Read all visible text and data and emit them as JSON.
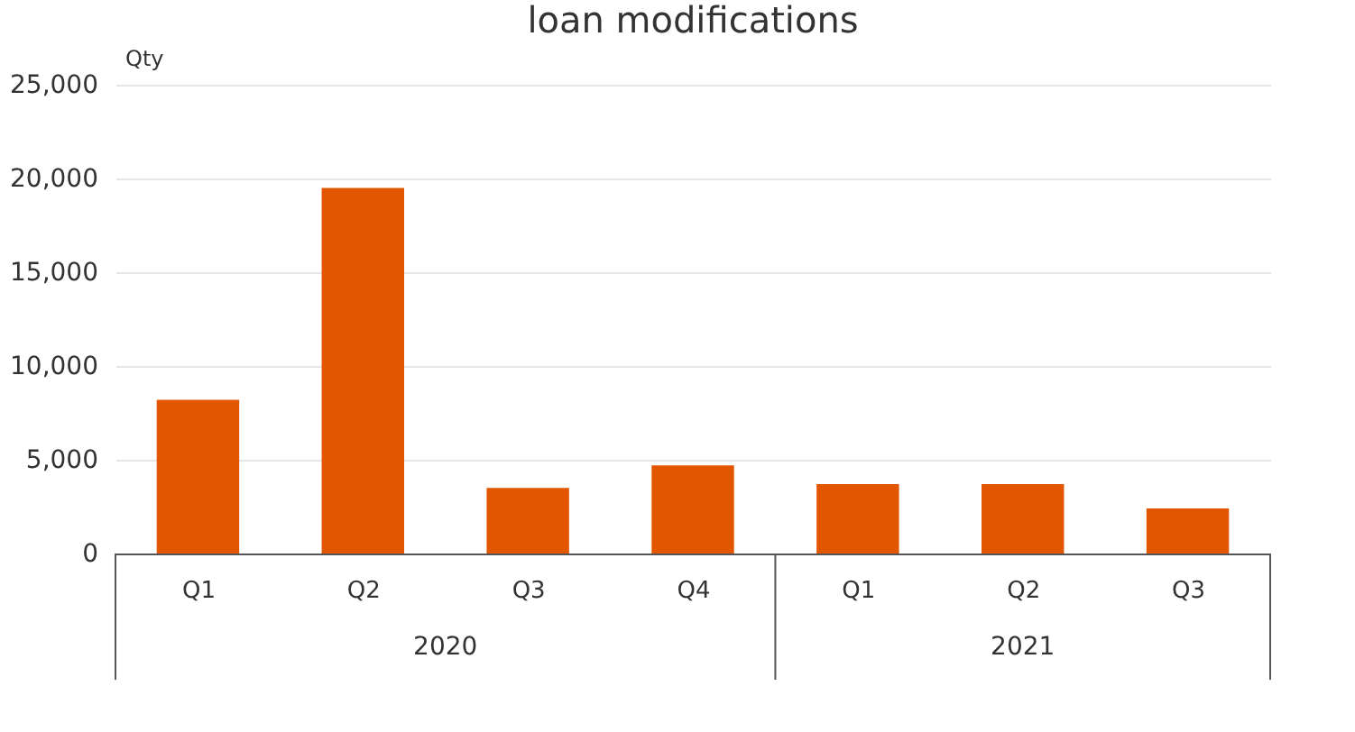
{
  "chart_data": {
    "type": "bar",
    "title": "loan modifications",
    "ylabel": "Qty",
    "categories": [
      "Q1",
      "Q2",
      "Q3",
      "Q4",
      "Q1",
      "Q2",
      "Q3"
    ],
    "values": [
      8200,
      19500,
      3500,
      4700,
      3700,
      3700,
      2400
    ],
    "color": "#e35600",
    "ylim": [
      0,
      25000
    ],
    "yticks": [
      0,
      {
        "value": 5000,
        "label": "5,000"
      },
      {
        "value": 10000,
        "label": "10,000"
      },
      {
        "value": 15000,
        "label": "15,000"
      },
      {
        "value": 20000,
        "label": "20,000"
      },
      {
        "value": 25000,
        "label": "25,000"
      }
    ],
    "grid": "y",
    "annotations": [
      "2020",
      "2021"
    ]
  }
}
